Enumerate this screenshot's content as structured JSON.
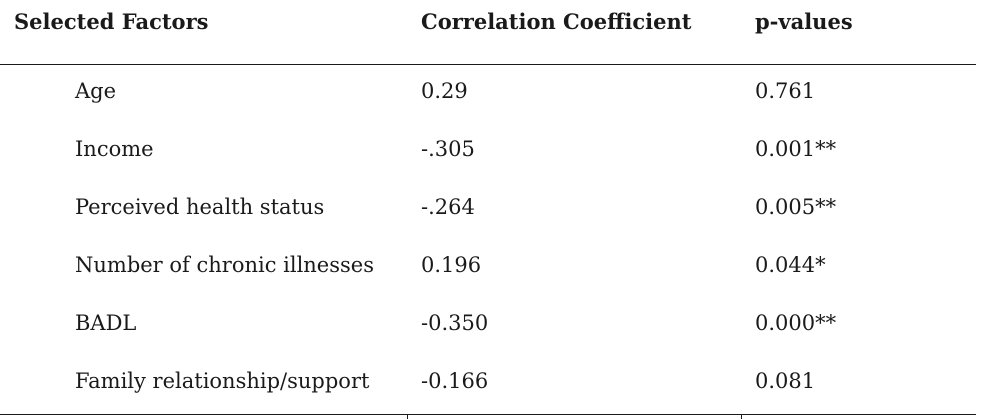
{
  "table": {
    "headers": [
      "Selected Factors",
      "Correlation Coefficient",
      "p-values"
    ],
    "rows": [
      {
        "factor": "Age",
        "coefficient": "0.29",
        "p_value": "0.761"
      },
      {
        "factor": "Income",
        "coefficient": "-.305",
        "p_value": "0.001**"
      },
      {
        "factor": "Perceived health status",
        "coefficient": "-.264",
        "p_value": "0.005**"
      },
      {
        "factor": "Number of chronic illnesses",
        "coefficient": "0.196",
        "p_value": "0.044*"
      },
      {
        "factor": "BADL",
        "coefficient": "-0.350",
        "p_value": "0.000**"
      },
      {
        "factor": "Family relationship/support",
        "coefficient": "-0.166",
        "p_value": "0.081"
      }
    ]
  },
  "chart_data": {
    "type": "table",
    "columns": [
      "Selected Factors",
      "Correlation Coefficient",
      "p-values"
    ],
    "rows": [
      [
        "Age",
        "0.29",
        "0.761"
      ],
      [
        "Income",
        "-.305",
        "0.001**"
      ],
      [
        "Perceived health status",
        "-.264",
        "0.005**"
      ],
      [
        "Number of chronic illnesses",
        "0.196",
        "0.044*"
      ],
      [
        "BADL",
        "-0.350",
        "0.000**"
      ],
      [
        "Family relationship/support",
        "-0.166",
        "0.081"
      ]
    ]
  }
}
